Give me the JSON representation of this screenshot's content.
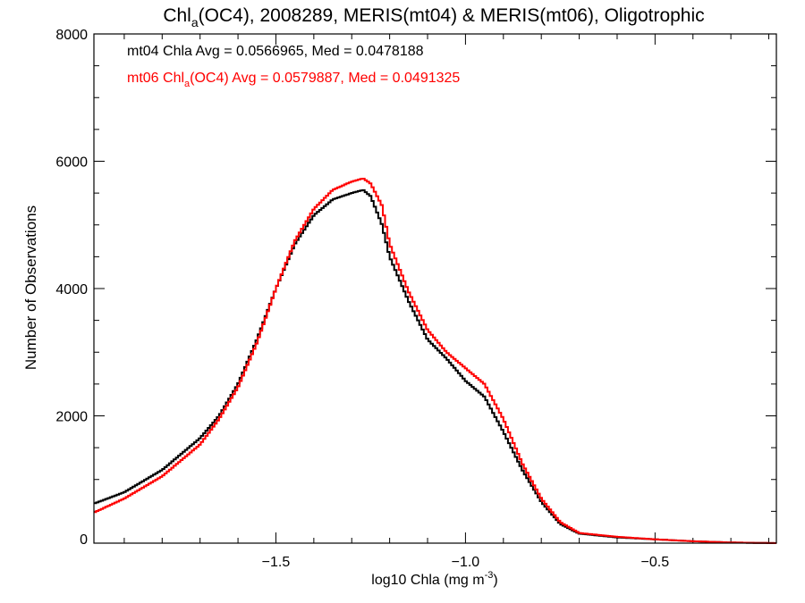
{
  "chart_data": {
    "type": "line",
    "title": {
      "pre": "Chl",
      "sub": "a",
      "post": "(OC4), 2008289, MERIS(mt04) & MERIS(mt06), Oligotrophic"
    },
    "xlabel": {
      "pre": "log10 Chla (mg m",
      "sup": "-3",
      "post": ")"
    },
    "ylabel": "Number of Observations",
    "xlim": [
      -1.98,
      -0.18
    ],
    "ylim": [
      0,
      8000
    ],
    "x_ticks": [
      -1.5,
      -1.0,
      -0.5
    ],
    "x_tick_labels": [
      "−1.5",
      "−1.0",
      "−0.5"
    ],
    "y_ticks": [
      0,
      2000,
      4000,
      6000,
      8000
    ],
    "y_tick_labels": [
      "0",
      "2000",
      "4000",
      "6000",
      "8000"
    ],
    "annotations": [
      {
        "pre": "mt04 Chla Avg = 0.0566965, Med = 0.0478188",
        "sub": "",
        "post": "",
        "color": "#000000"
      },
      {
        "pre": "mt06 Chl",
        "sub": "a",
        "post": "(OC4) Avg = 0.0579887, Med = 0.0491325",
        "color": "#ff0000"
      }
    ],
    "series": [
      {
        "color": "#000000",
        "x": [
          -1.98,
          -1.9,
          -1.8,
          -1.7,
          -1.65,
          -1.6,
          -1.55,
          -1.5,
          -1.45,
          -1.4,
          -1.35,
          -1.3,
          -1.27,
          -1.25,
          -1.22,
          -1.2,
          -1.15,
          -1.1,
          -1.05,
          -1.0,
          -0.95,
          -0.9,
          -0.85,
          -0.8,
          -0.75,
          -0.7,
          -0.6,
          -0.5,
          -0.4,
          -0.3,
          -0.18
        ],
        "values": [
          620,
          800,
          1150,
          1650,
          2000,
          2500,
          3200,
          4000,
          4700,
          5150,
          5400,
          5500,
          5550,
          5450,
          5000,
          4500,
          3800,
          3200,
          2900,
          2550,
          2300,
          1750,
          1150,
          650,
          300,
          150,
          90,
          60,
          30,
          10,
          0
        ]
      },
      {
        "color": "#ff0000",
        "x": [
          -1.98,
          -1.9,
          -1.8,
          -1.7,
          -1.65,
          -1.6,
          -1.55,
          -1.5,
          -1.45,
          -1.4,
          -1.35,
          -1.3,
          -1.27,
          -1.25,
          -1.22,
          -1.2,
          -1.15,
          -1.1,
          -1.05,
          -1.0,
          -0.95,
          -0.9,
          -0.85,
          -0.8,
          -0.75,
          -0.7,
          -0.6,
          -0.5,
          -0.4,
          -0.3,
          -0.18
        ],
        "values": [
          480,
          700,
          1050,
          1550,
          1950,
          2450,
          3150,
          4000,
          4750,
          5250,
          5550,
          5680,
          5730,
          5650,
          5300,
          4700,
          3950,
          3350,
          3000,
          2750,
          2500,
          1950,
          1250,
          700,
          330,
          160,
          100,
          60,
          30,
          10,
          0
        ]
      }
    ]
  }
}
